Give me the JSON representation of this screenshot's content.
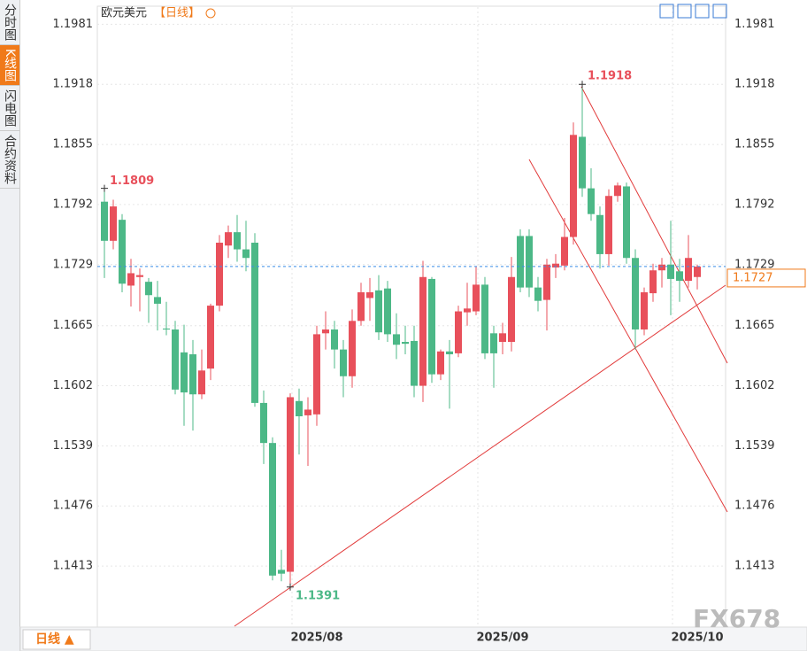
{
  "ui": {
    "tabs": [
      "分时图",
      "K线图",
      "闪电图",
      "合约资料"
    ],
    "period_button": "日线 ▲",
    "watermark": "FX678"
  },
  "chart_data": {
    "type": "candlestick",
    "title": "欧元美元",
    "subtitle": "【日线】",
    "categories": [
      null,
      null,
      null,
      null,
      null,
      null,
      null,
      null,
      null,
      null,
      null,
      null,
      null,
      null,
      null,
      null,
      null,
      null,
      null,
      null,
      null,
      null,
      null,
      null,
      "2025/08",
      null,
      null,
      null,
      null,
      null,
      null,
      null,
      null,
      null,
      null,
      null,
      null,
      null,
      null,
      null,
      null,
      null,
      null,
      null,
      null,
      "2025/09",
      null,
      null,
      null,
      null,
      null,
      null,
      null,
      null,
      null,
      null,
      null,
      null,
      null,
      null,
      null,
      null,
      null,
      null,
      null,
      null,
      null,
      "2025/10"
    ],
    "open": [
      1.1795,
      1.1754,
      1.1776,
      1.1707,
      1.1716,
      1.1711,
      1.1695,
      1.1662,
      1.1661,
      1.1637,
      1.1635,
      1.1593,
      1.162,
      1.1686,
      1.1749,
      1.1763,
      1.1745,
      1.1752,
      1.1584,
      1.1542,
      1.1409,
      1.1407,
      1.1586,
      1.1571,
      1.1572,
      1.1657,
      1.1661,
      1.164,
      1.1612,
      1.167,
      1.1694,
      1.1702,
      1.1704,
      1.1656,
      1.1648,
      1.1649,
      1.1602,
      1.1714,
      1.1614,
      1.1638,
      1.1636,
      1.1679,
      1.168,
      1.1708,
      1.1657,
      1.1648,
      1.1648,
      1.1759,
      1.1759,
      1.1705,
      1.1692,
      1.1726,
      1.1728,
      1.1758,
      1.1863,
      1.1809,
      1.1781,
      1.174,
      1.1801,
      1.1811,
      1.1736,
      1.1661,
      1.1699,
      1.1723,
      1.1729,
      1.1722,
      1.1712,
      1.1716
    ],
    "high": [
      1.1809,
      1.1797,
      1.1782,
      1.1735,
      1.1725,
      1.1715,
      1.1712,
      1.169,
      1.167,
      1.1666,
      1.165,
      1.164,
      1.1688,
      1.176,
      1.177,
      1.1781,
      1.1775,
      1.1762,
      1.1597,
      1.1548,
      1.143,
      1.1594,
      1.1599,
      1.159,
      1.1665,
      1.168,
      1.167,
      1.165,
      1.1682,
      1.171,
      1.1715,
      1.1718,
      1.1712,
      1.1678,
      1.1665,
      1.1665,
      1.1733,
      1.1716,
      1.164,
      1.165,
      1.1686,
      1.171,
      1.1727,
      1.1716,
      1.1665,
      1.1668,
      1.1737,
      1.1766,
      1.1766,
      1.1716,
      1.1735,
      1.174,
      1.1778,
      1.1878,
      1.1918,
      1.183,
      1.179,
      1.1808,
      1.1815,
      1.1815,
      1.1745,
      1.1705,
      1.173,
      1.1736,
      1.1775,
      1.1735,
      1.176,
      1.1729
    ],
    "low": [
      1.1715,
      1.1745,
      1.17,
      1.1685,
      1.168,
      1.1668,
      1.166,
      1.1655,
      1.1593,
      1.156,
      1.1555,
      1.1588,
      1.1608,
      1.168,
      1.1736,
      1.1732,
      1.1722,
      1.158,
      1.152,
      1.1398,
      1.1397,
      1.1391,
      1.153,
      1.1518,
      1.156,
      1.164,
      1.162,
      1.159,
      1.16,
      1.1665,
      1.167,
      1.165,
      1.1648,
      1.163,
      1.1635,
      1.159,
      1.1585,
      1.1605,
      1.1608,
      1.1578,
      1.1632,
      1.1665,
      1.1676,
      1.163,
      1.16,
      1.1635,
      1.1638,
      1.17,
      1.1695,
      1.168,
      1.166,
      1.1715,
      1.1723,
      1.175,
      1.18,
      1.1775,
      1.1725,
      1.1728,
      1.1795,
      1.173,
      1.164,
      1.1655,
      1.169,
      1.1705,
      1.1676,
      1.169,
      1.1705,
      1.1703
    ],
    "close": [
      1.1754,
      1.179,
      1.1709,
      1.172,
      1.1718,
      1.1697,
      1.1688,
      1.1661,
      1.1598,
      1.1595,
      1.1593,
      1.1618,
      1.1686,
      1.1752,
      1.1763,
      1.1745,
      1.1736,
      1.1584,
      1.1542,
      1.1403,
      1.1405,
      1.159,
      1.157,
      1.1577,
      1.1656,
      1.1661,
      1.164,
      1.1612,
      1.167,
      1.17,
      1.17,
      1.1658,
      1.1656,
      1.1645,
      1.1646,
      1.1602,
      1.1716,
      1.1614,
      1.1638,
      1.1635,
      1.168,
      1.1683,
      1.1708,
      1.1636,
      1.1636,
      1.1657,
      1.1716,
      1.1705,
      1.1705,
      1.1691,
      1.1729,
      1.173,
      1.1758,
      1.1865,
      1.1809,
      1.1782,
      1.174,
      1.1801,
      1.1812,
      1.1736,
      1.1661,
      1.17,
      1.1723,
      1.1729,
      1.1714,
      1.1712,
      1.1736,
      1.1727
    ],
    "up_color": "#e8505b",
    "down_color": "#4cb887",
    "current_price": 1.1727,
    "current_price_color": "#3a8ee6",
    "ylim": [
      1.1349,
      1.1999
    ],
    "yticks": [
      1.1981,
      1.1918,
      1.1855,
      1.1792,
      1.1729,
      1.1665,
      1.1602,
      1.1539,
      1.1476,
      1.1413
    ],
    "grid": true
  }
}
